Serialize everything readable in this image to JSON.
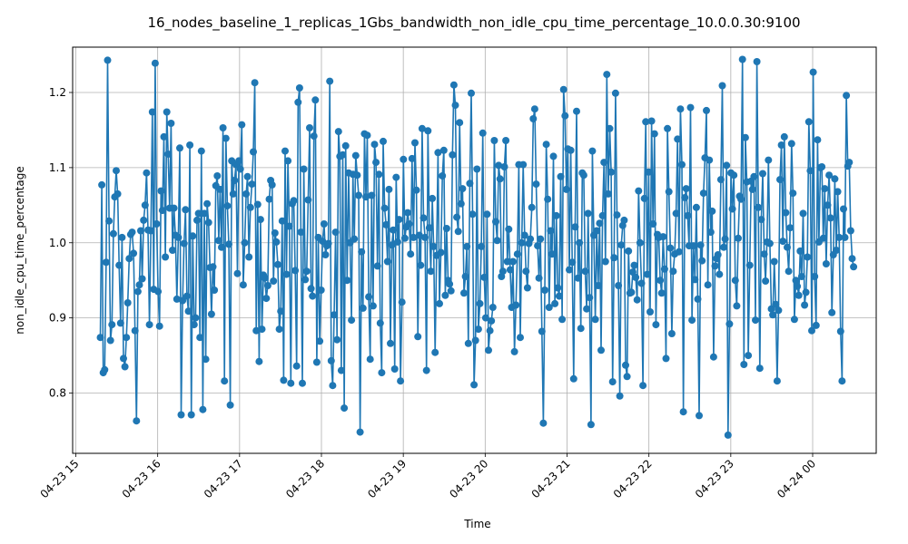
{
  "chart_data": {
    "type": "line",
    "title": "16_nodes_baseline_1_replicas_1Gbs_bandwidth_non_idle_cpu_time_percentage_10.0.0.30:9100",
    "xlabel": "Time",
    "ylabel": "non_idle_cpu_time_percentage",
    "x_start": "04-23 15:18",
    "x_end": "04-24 00:30",
    "x_ticks": [
      "04-23 15",
      "04-23 16",
      "04-23 17",
      "04-23 18",
      "04-23 19",
      "04-23 20",
      "04-23 21",
      "04-23 22",
      "04-23 23",
      "04-24 00"
    ],
    "y_ticks": [
      "0.8",
      "0.9",
      "1.0",
      "1.1",
      "1.2"
    ],
    "ylim": [
      0.715,
      1.27
    ],
    "grid": true,
    "line_color": "#1f77b4",
    "marker": "circle",
    "series": [
      {
        "values": [
          0.874,
          1.077,
          0.827,
          0.831,
          0.974,
          1.243,
          1.029,
          0.87,
          0.891,
          1.012,
          1.061,
          1.096,
          1.065,
          0.97,
          0.893,
          1.007,
          0.846,
          0.835,
          0.874,
          0.92,
          0.979,
          1.011,
          1.014,
          0.986,
          0.883,
          0.763,
          0.935,
          0.944,
          1.016,
          0.952,
          1.03,
          1.05,
          1.093,
          1.017,
          0.891,
          1.016,
          1.174,
          0.938,
          1.239,
          1.025,
          0.935,
          0.889,
          1.069,
          1.043,
          1.141,
          0.981,
          1.174,
          1.118,
          1.046,
          1.159,
          0.99,
          1.046,
          1.01,
          0.925,
          1.007,
          1.126,
          0.771,
          0.923,
          0.999,
          1.044,
          0.929,
          0.909,
          1.13,
          0.771,
          1.009,
          0.891,
          0.9,
          1.03,
          1.039,
          0.874,
          1.122,
          0.778,
          1.039,
          0.845,
          1.052,
          1.027,
          0.967,
          0.905,
          0.968,
          0.937,
          1.076,
          1.089,
          1.003,
          1.071,
          0.994,
          1.153,
          0.816,
          1.139,
          1.049,
          0.998,
          0.784,
          1.109,
          1.065,
          1.083,
          1.104,
          0.959,
          1.109,
          1.098,
          1.157,
          0.944,
          1.0,
          1.065,
          1.088,
          0.981,
          1.047,
          1.078,
          1.121,
          1.213,
          0.883,
          1.051,
          0.842,
          1.031,
          0.885,
          0.957,
          0.953,
          0.926,
          0.943,
          1.058,
          1.083,
          1.077,
          0.949,
          1.013,
          1.001,
          0.971,
          0.885,
          0.909,
          1.029,
          0.817,
          1.122,
          0.958,
          1.109,
          1.022,
          0.813,
          1.052,
          1.056,
          0.963,
          0.836,
          1.187,
          1.206,
          1.014,
          0.813,
          1.098,
          0.951,
          0.962,
          1.057,
          1.153,
          0.939,
          0.929,
          1.142,
          1.19,
          0.841,
          1.007,
          0.869,
          0.937,
          1.002,
          1.025,
          0.984,
          0.996,
          0.999,
          1.215,
          0.843,
          0.81,
          0.904,
          1.014,
          0.871,
          1.148,
          1.115,
          0.83,
          1.117,
          0.78,
          1.129,
          0.95,
          1.093,
          1.0,
          0.897,
          1.091,
          1.005,
          1.116,
          1.09,
          1.063,
          0.748,
          0.988,
          0.913,
          1.145,
          1.061,
          1.143,
          0.928,
          0.845,
          1.063,
          0.916,
          1.131,
          1.107,
          0.969,
          1.091,
          0.893,
          0.827,
          1.135,
          1.046,
          1.024,
          0.975,
          1.071,
          0.866,
          0.997,
          1.017,
          0.832,
          1.087,
          1.001,
          1.031,
          0.816,
          0.921,
          1.111,
          1.006,
          1.021,
          1.04,
          1.025,
          0.985,
          1.112,
          1.007,
          1.133,
          1.07,
          0.875,
          1.01,
          0.97,
          1.152,
          1.033,
          1.007,
          0.83,
          1.149,
          1.02,
          0.962,
          1.059,
          0.995,
          0.854,
          0.983,
          1.12,
          0.919,
          0.987,
          1.089,
          1.123,
          0.93,
          1.019,
          0.95,
          0.945,
          0.936,
          1.117,
          1.21,
          1.183,
          1.034,
          1.015,
          1.16,
          1.052,
          1.072,
          0.933,
          0.955,
          0.995,
          0.866,
          1.079,
          1.199,
          1.038,
          0.811,
          0.87,
          1.098,
          0.885,
          0.919,
          0.995,
          1.146,
          0.954,
          0.9,
          1.038,
          0.857,
          0.883,
          0.896,
          0.914,
          1.136,
          1.028,
          1.003,
          1.103,
          1.085,
          0.955,
          0.962,
          1.101,
          1.136,
          0.975,
          1.018,
          0.964,
          0.914,
          0.975,
          0.855,
          0.917,
          0.985,
          1.104,
          0.874,
          1.0,
          1.104,
          1.01,
          0.962,
          0.94,
          0.999,
          1.005,
          1.047,
          1.165,
          1.178,
          1.078,
          0.996,
          0.953,
          1.005,
          0.882,
          0.76,
          0.937,
          1.131,
          1.058,
          0.914,
          1.016,
          0.985,
          1.115,
          0.919,
          1.036,
          0.94,
          0.929,
          1.088,
          0.898,
          1.204,
          1.169,
          1.071,
          1.125,
          0.964,
          1.123,
          0.974,
          0.819,
          1.021,
          1.175,
          0.953,
          1.0,
          0.886,
          1.093,
          1.09,
          0.962,
          0.912,
          1.039,
          0.927,
          0.758,
          1.122,
          1.01,
          0.898,
          1.016,
          0.943,
          1.026,
          0.857,
          1.036,
          1.107,
          0.975,
          1.224,
          1.065,
          1.152,
          1.094,
          0.815,
          0.98,
          1.199,
          1.037,
          0.943,
          0.796,
          0.997,
          1.023,
          1.03,
          0.837,
          0.822,
          0.989,
          0.933,
          0.934,
          0.961,
          0.97,
          0.954,
          0.924,
          1.069,
          1.0,
          0.946,
          0.81,
          1.059,
          1.161,
          0.958,
          1.094,
          0.908,
          1.162,
          1.025,
          1.145,
          0.891,
          1.011,
          1.007,
          0.95,
          0.933,
          1.008,
          0.965,
          0.846,
          1.152,
          1.068,
          0.993,
          0.879,
          0.962,
          0.985,
          1.039,
          1.138,
          0.988,
          1.178,
          1.104,
          0.775,
          1.06,
          1.072,
          1.036,
          0.996,
          1.18,
          0.897,
          0.996,
          0.951,
          1.047,
          0.925,
          0.77,
          0.997,
          0.976,
          1.066,
          1.113,
          1.176,
          0.944,
          1.11,
          1.014,
          1.042,
          0.848,
          0.969,
          0.979,
          0.984,
          0.958,
          1.084,
          1.209,
          0.994,
          1.005,
          1.103,
          0.744,
          0.892,
          1.093,
          1.045,
          1.09,
          0.95,
          0.916,
          1.006,
          1.062,
          1.058,
          1.244,
          0.838,
          1.14,
          1.081,
          0.85,
          0.97,
          1.082,
          1.071,
          1.088,
          0.897,
          1.241,
          1.047,
          0.833,
          1.031,
          1.092,
          0.985,
          0.949,
          1.001,
          1.11,
          0.999,
          0.912,
          0.904,
          0.975,
          0.918,
          0.816,
          0.91,
          1.084,
          1.13,
          1.002,
          1.141,
          1.04,
          0.994,
          0.962,
          1.02,
          1.132,
          1.066,
          0.898,
          0.95,
          0.942,
          0.93,
          0.989,
          0.955,
          1.039,
          0.917,
          0.934,
          0.981,
          1.161,
          1.096,
          0.883,
          1.227,
          0.955,
          0.89,
          1.137,
          1.001,
          1.1,
          1.101,
          1.006,
          1.072,
          0.972,
          1.05,
          1.09,
          1.033,
          0.907,
          0.984,
          1.085,
          0.99,
          1.068,
          1.007,
          0.882,
          0.816,
          1.045,
          1.007,
          1.196,
          1.102,
          1.107,
          1.016,
          0.979,
          0.968
        ]
      }
    ]
  }
}
